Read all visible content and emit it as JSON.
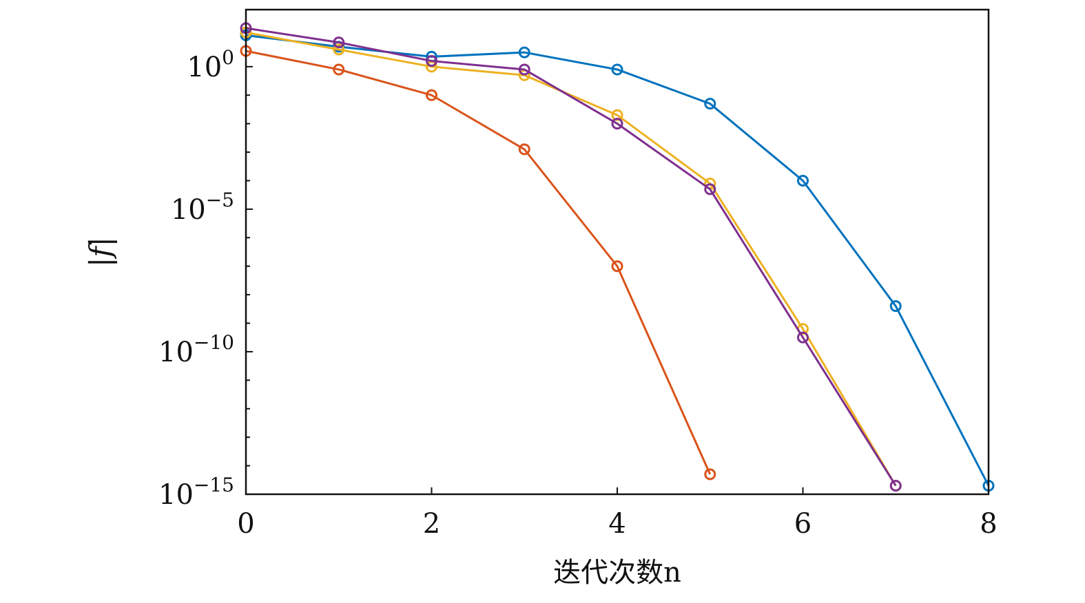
{
  "chart_data": {
    "type": "line",
    "xlabel": "迭代次数n",
    "ylabel": "|f|",
    "xlim": [
      0,
      8
    ],
    "ylim_log10": [
      -15,
      2
    ],
    "yscale": "log",
    "grid": false,
    "marker": "circle-open",
    "x_ticks": [
      "0",
      "2",
      "4",
      "6",
      "8"
    ],
    "y_ticks": [
      {
        "exp": 0,
        "base": "10",
        "sup": "0"
      },
      {
        "exp": -5,
        "base": "10",
        "sup": "−5"
      },
      {
        "exp": -10,
        "base": "10",
        "sup": "−10"
      },
      {
        "exp": -15,
        "base": "10",
        "sup": "−15"
      }
    ],
    "series": [
      {
        "color": "#0072BD",
        "x": [
          0,
          1,
          2,
          3,
          4,
          5,
          6,
          7,
          8
        ],
        "log10_y": [
          1.1,
          0.7,
          0.35,
          0.5,
          -0.1,
          -1.3,
          -4.0,
          -8.4,
          -14.7
        ]
      },
      {
        "color": "#D95319",
        "x": [
          0,
          1,
          2,
          3,
          4,
          5
        ],
        "log10_y": [
          0.55,
          -0.1,
          -1.0,
          -2.9,
          -7.0,
          -14.3
        ]
      },
      {
        "color": "#EDB120",
        "x": [
          0,
          1,
          2,
          3,
          4,
          5,
          6,
          7
        ],
        "log10_y": [
          1.2,
          0.6,
          0.0,
          -0.3,
          -1.7,
          -4.1,
          -9.2,
          -14.7
        ]
      },
      {
        "color": "#7E2F8E",
        "x": [
          0,
          1,
          2,
          3,
          4,
          5,
          6,
          7
        ],
        "log10_y": [
          1.35,
          0.85,
          0.2,
          -0.1,
          -2.0,
          -4.3,
          -9.5,
          -14.7
        ]
      }
    ]
  }
}
